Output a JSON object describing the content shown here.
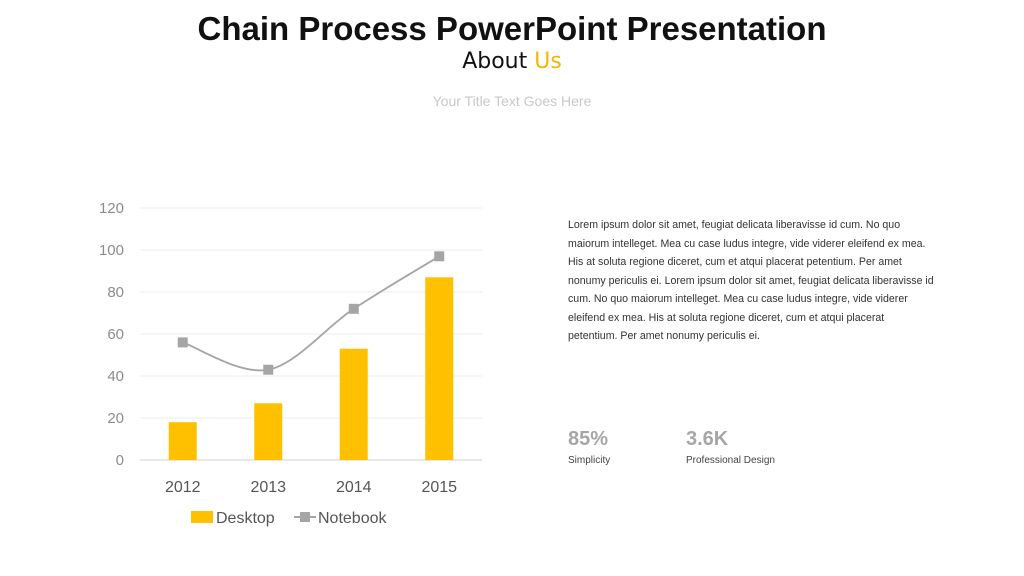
{
  "header": {
    "title": "Chain Process PowerPoint Presentation",
    "subtitle_main": "About ",
    "subtitle_accent": "Us",
    "tagline": "Your Title Text Goes Here"
  },
  "colors": {
    "accent": "#FFC000",
    "line": "#A5A5A5",
    "grid": "#EEEEEE",
    "axis_text": "#8C8C8C"
  },
  "chart_data": {
    "type": "bar",
    "categories": [
      "2012",
      "2013",
      "2014",
      "2015"
    ],
    "series": [
      {
        "name": "Desktop",
        "type": "bar",
        "values": [
          18,
          27,
          53,
          87
        ],
        "color": "#FFC000"
      },
      {
        "name": "Notebook",
        "type": "line",
        "smooth": true,
        "marker": "square",
        "values": [
          56,
          43,
          72,
          97
        ],
        "color": "#A5A5A5"
      }
    ],
    "ylim": [
      0,
      120
    ],
    "yticks": [
      0,
      20,
      40,
      60,
      80,
      100,
      120
    ],
    "grid": true,
    "legend": "bottom"
  },
  "content": {
    "paragraph": "Lorem ipsum dolor sit amet, feugiat delicata liberavisse id cum. No quo maiorum intelleget. Mea cu case ludus integre, vide viderer eleifend ex mea. His at soluta regione diceret, cum et atqui placerat petentium. Per amet nonumy periculis ei. Lorem ipsum dolor sit amet, feugiat delicata liberavisse id cum. No quo maiorum intelleget. Mea cu case ludus integre, vide viderer eleifend ex mea. His at soluta regione diceret, cum et atqui placerat petentium. Per amet nonumy periculis ei.",
    "stats": [
      {
        "value": "85%",
        "label": "Simplicity"
      },
      {
        "value": "3.6K",
        "label": "Professional Design"
      }
    ]
  }
}
